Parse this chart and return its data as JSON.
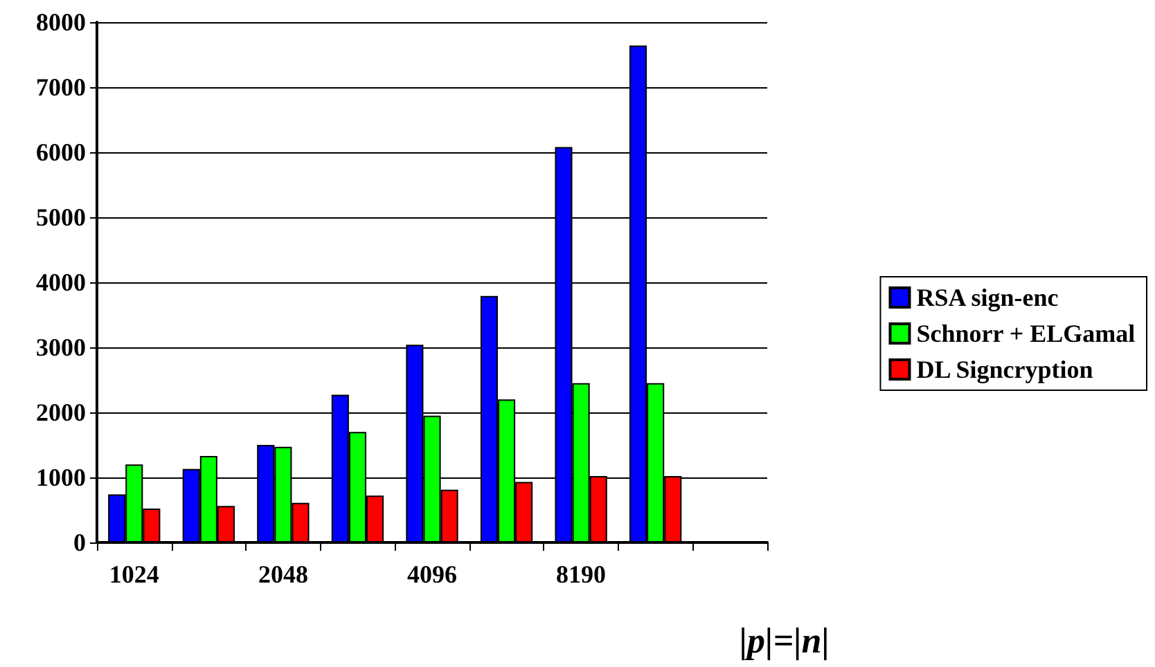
{
  "chart_data": {
    "type": "bar",
    "xlabel": "|p|=|n|",
    "categories": [
      "1024",
      null,
      "2048",
      null,
      "4096",
      null,
      "8190",
      null,
      null
    ],
    "series": [
      {
        "name": "RSA sign-enc",
        "color": "#0000ff",
        "values": [
          740,
          1130,
          1500,
          2270,
          3040,
          3790,
          6080,
          7640,
          null
        ]
      },
      {
        "name": "Schnorr + ELGamal",
        "color": "#00ff00",
        "values": [
          1200,
          1330,
          1470,
          1700,
          1950,
          2200,
          2450,
          2450,
          null
        ]
      },
      {
        "name": "DL Signcryption",
        "color": "#ff0000",
        "values": [
          520,
          560,
          610,
          720,
          810,
          930,
          1020,
          1020,
          null
        ]
      }
    ],
    "ylim": [
      0,
      8000
    ],
    "yticks": [
      0,
      1000,
      2000,
      3000,
      4000,
      5000,
      6000,
      7000,
      8000
    ],
    "grid": "y",
    "legend": "right"
  }
}
